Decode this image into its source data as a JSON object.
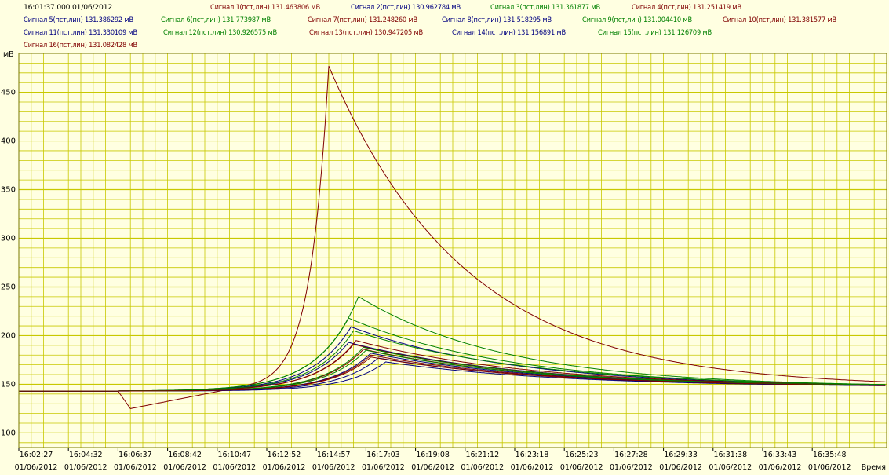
{
  "header": {
    "timestamp": "16:01:37.000 01/06/2012"
  },
  "colors": {
    "background": "#ffffe1",
    "grid": "#c8c800",
    "frame": "#7a7a00"
  },
  "chart_data": {
    "type": "line",
    "ylabel": "мВ",
    "xlabel": "Время",
    "ylim": [
      85,
      490
    ],
    "xlim": [
      0,
      35
    ],
    "grid": true,
    "y_ticks": [
      100,
      150,
      200,
      250,
      300,
      350,
      400,
      450
    ],
    "x_ticks": [
      {
        "time": "16:02:27",
        "date": "01/06/2012"
      },
      {
        "time": "16:04:32",
        "date": "01/06/2012"
      },
      {
        "time": "16:06:37",
        "date": "01/06/2012"
      },
      {
        "time": "16:08:42",
        "date": "01/06/2012"
      },
      {
        "time": "16:10:47",
        "date": "01/06/2012"
      },
      {
        "time": "16:12:52",
        "date": "01/06/2012"
      },
      {
        "time": "16:14:57",
        "date": "01/06/2012"
      },
      {
        "time": "16:17:03",
        "date": "01/06/2012"
      },
      {
        "time": "16:19:08",
        "date": "01/06/2012"
      },
      {
        "time": "16:21:12",
        "date": "01/06/2012"
      },
      {
        "time": "16:23:18",
        "date": "01/06/2012"
      },
      {
        "time": "16:25:23",
        "date": "01/06/2012"
      },
      {
        "time": "16:27:28",
        "date": "01/06/2012"
      },
      {
        "time": "16:29:33",
        "date": "01/06/2012"
      },
      {
        "time": "16:31:38",
        "date": "01/06/2012"
      },
      {
        "time": "16:33:43",
        "date": "01/06/2012"
      },
      {
        "time": "16:35:48",
        "date": "01/06/2012"
      }
    ],
    "series": [
      {
        "name": "Сигнал 1(пст,лин) 131.463806 мВ",
        "color": "#800000",
        "baseline": 143,
        "dip": 18,
        "peak": 477,
        "t_peak": 12.5,
        "tau": 5.5
      },
      {
        "name": "Сигнал 2(пст,лин) 130.962784 мВ",
        "color": "#000080",
        "baseline": 143,
        "dip": 0,
        "peak": 193,
        "t_peak": 13.3,
        "tau": 7
      },
      {
        "name": "Сигнал 3(пст,лин) 131.361877 мВ",
        "color": "#008000",
        "baseline": 143,
        "dip": 0,
        "peak": 218,
        "t_peak": 13.3,
        "tau": 6.5
      },
      {
        "name": "Сигнал 4(пст,лин) 131.251419 мВ",
        "color": "#800000",
        "baseline": 143,
        "dip": 0,
        "peak": 191,
        "t_peak": 13.5,
        "tau": 7
      },
      {
        "name": "Сигнал 5(пст,лин) 131.386292 мВ",
        "color": "#000080",
        "baseline": 143,
        "dip": 0,
        "peak": 209,
        "t_peak": 13.4,
        "tau": 6.5
      },
      {
        "name": "Сигнал 6(пст,лин) 131.773987 мВ",
        "color": "#008000",
        "baseline": 143,
        "dip": 0,
        "peak": 240,
        "t_peak": 13.7,
        "tau": 6
      },
      {
        "name": "Сигнал 7(пст,лин) 131.248260 мВ",
        "color": "#800000",
        "baseline": 143,
        "dip": 0,
        "peak": 186,
        "t_peak": 13.9,
        "tau": 7
      },
      {
        "name": "Сигнал 8(пст,лин) 131.518295 мВ",
        "color": "#000080",
        "baseline": 143,
        "dip": 0,
        "peak": 182,
        "t_peak": 14.2,
        "tau": 7
      },
      {
        "name": "Сигнал 9(пст,лин) 131.004410 мВ",
        "color": "#008000",
        "baseline": 143,
        "dip": 0,
        "peak": 185,
        "t_peak": 14.0,
        "tau": 7
      },
      {
        "name": "Сигнал 10(пст,лин) 131.381577 мВ",
        "color": "#800000",
        "baseline": 143,
        "dip": 0,
        "peak": 195,
        "t_peak": 13.6,
        "tau": 7
      },
      {
        "name": "Сигнал 11(пст,лин) 131.330109 мВ",
        "color": "#000080",
        "baseline": 143,
        "dip": 0,
        "peak": 177,
        "t_peak": 14.5,
        "tau": 7
      },
      {
        "name": "Сигнал 12(пст,лин) 130.926575 мВ",
        "color": "#008000",
        "baseline": 143,
        "dip": 0,
        "peak": 205,
        "t_peak": 13.5,
        "tau": 7
      },
      {
        "name": "Сигнал 13(пст,лин) 130.947205 мВ",
        "color": "#800000",
        "baseline": 143,
        "dip": 0,
        "peak": 178,
        "t_peak": 14.2,
        "tau": 7
      },
      {
        "name": "Сигнал 14(пст,лин) 131.156891 мВ",
        "color": "#000080",
        "baseline": 143,
        "dip": 0,
        "peak": 173,
        "t_peak": 14.8,
        "tau": 7
      },
      {
        "name": "Сигнал 15(пст,лин) 131.126709 мВ",
        "color": "#008000",
        "baseline": 143,
        "dip": 0,
        "peak": 188,
        "t_peak": 13.9,
        "tau": 7
      },
      {
        "name": "Сигнал 16(пст,лин) 131.082428 мВ",
        "color": "#800000",
        "baseline": 143,
        "dip": 0,
        "peak": 180,
        "t_peak": 14.2,
        "tau": 7
      }
    ]
  }
}
